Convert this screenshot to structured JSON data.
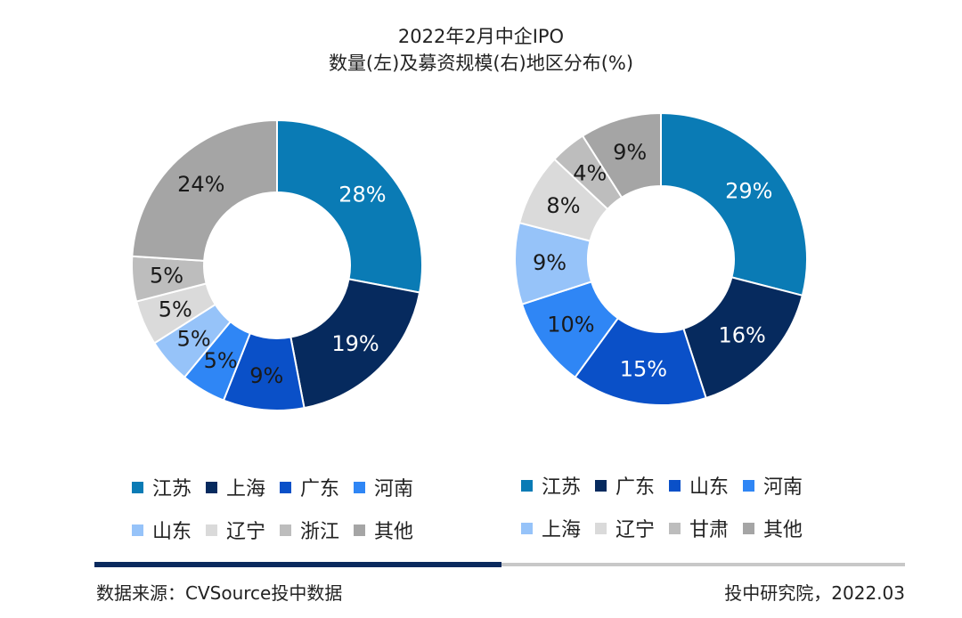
{
  "title": {
    "line1": "2022年2月中企IPO",
    "line2": "数量(左)及募资规模(右)地区分布(%)"
  },
  "chart_data": [
    {
      "type": "pie",
      "subtype": "donut",
      "categories": [
        "江苏",
        "上海",
        "广东",
        "河南",
        "山东",
        "辽宁",
        "浙江",
        "其他"
      ],
      "values": [
        28,
        19,
        9,
        5,
        5,
        5,
        5,
        24
      ],
      "labels": [
        "28%",
        "19%",
        "9%",
        "5%",
        "5%",
        "5%",
        "5%",
        "24%"
      ],
      "colors": [
        "#0a7bb5",
        "#062a5e",
        "#0a50c8",
        "#2f86f5",
        "#96c3f9",
        "#dadada",
        "#bdbdbd",
        "#a5a5a5"
      ],
      "legend_position": "bottom"
    },
    {
      "type": "pie",
      "subtype": "donut",
      "categories": [
        "江苏",
        "广东",
        "山东",
        "河南",
        "上海",
        "辽宁",
        "甘肃",
        "其他"
      ],
      "values": [
        29,
        16,
        15,
        10,
        9,
        8,
        4,
        9
      ],
      "labels": [
        "29%",
        "16%",
        "15%",
        "10%",
        "9%",
        "8%",
        "4%",
        "9%"
      ],
      "colors": [
        "#0a7bb5",
        "#062a5e",
        "#0a50c8",
        "#2f86f5",
        "#96c3f9",
        "#dadada",
        "#bdbdbd",
        "#a5a5a5"
      ],
      "legend_position": "bottom"
    }
  ],
  "footer": {
    "source": "数据来源：CVSource投中数据",
    "credit": "投中研究院，2022.03"
  }
}
